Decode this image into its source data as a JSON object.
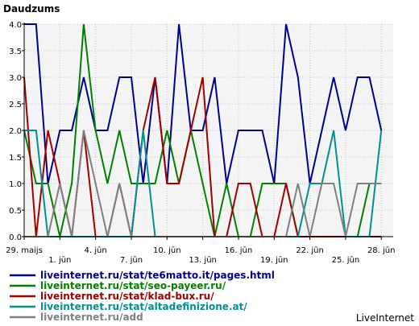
{
  "chart_data": {
    "type": "line",
    "title": "Daudzums",
    "brand": "LiveInternet",
    "ylim": [
      0,
      4
    ],
    "yticks": [
      "0.0",
      "0.5",
      "1.0",
      "1.5",
      "2.0",
      "2.5",
      "3.0",
      "3.5",
      "4.0"
    ],
    "xlim": [
      0,
      31
    ],
    "xticks": [
      {
        "label": "29. maijs",
        "x": 0,
        "row": 1
      },
      {
        "label": "1. jūn",
        "x": 3,
        "row": 2
      },
      {
        "label": "4. jūn",
        "x": 6,
        "row": 1
      },
      {
        "label": "7. jūn",
        "x": 9,
        "row": 2
      },
      {
        "label": "10. jūn",
        "x": 12,
        "row": 1
      },
      {
        "label": "13. jūn",
        "x": 15,
        "row": 2
      },
      {
        "label": "16. jūn",
        "x": 18,
        "row": 1
      },
      {
        "label": "19. jūn",
        "x": 21,
        "row": 2
      },
      {
        "label": "22. jūn",
        "x": 24,
        "row": 1
      },
      {
        "label": "25. jūn",
        "x": 27,
        "row": 2
      },
      {
        "label": "28. jūn",
        "x": 30,
        "row": 1
      }
    ],
    "grid": true,
    "series": [
      {
        "name": "liveinternet.ru/stat/te6matto.it/pages.html",
        "color": "#000090",
        "points": [
          [
            0,
            4
          ],
          [
            1,
            4
          ],
          [
            2,
            1
          ],
          [
            3,
            2
          ],
          [
            4,
            2
          ],
          [
            5,
            3
          ],
          [
            6,
            2
          ],
          [
            7,
            2
          ],
          [
            8,
            3
          ],
          [
            9,
            3
          ],
          [
            10,
            1
          ],
          [
            11,
            3
          ],
          [
            12,
            1
          ],
          [
            13,
            4
          ],
          [
            14,
            2
          ],
          [
            15,
            2
          ],
          [
            16,
            3
          ],
          [
            17,
            1
          ],
          [
            18,
            2
          ],
          [
            19,
            2
          ],
          [
            20,
            2
          ],
          [
            21,
            1
          ],
          [
            22,
            4
          ],
          [
            23,
            3
          ],
          [
            24,
            1
          ],
          [
            25,
            2
          ],
          [
            26,
            3
          ],
          [
            27,
            2
          ],
          [
            28,
            3
          ],
          [
            29,
            3
          ],
          [
            30,
            2
          ]
        ]
      },
      {
        "name": "liveinternet.ru/stat/seo-payeer.ru/",
        "color": "#008000",
        "points": [
          [
            0,
            2
          ],
          [
            1,
            1
          ],
          [
            2,
            1
          ],
          [
            3,
            0
          ],
          [
            4,
            1
          ],
          [
            5,
            4
          ],
          [
            6,
            2
          ],
          [
            7,
            1
          ],
          [
            8,
            2
          ],
          [
            9,
            1
          ],
          [
            10,
            1
          ],
          [
            11,
            1
          ],
          [
            12,
            2
          ],
          [
            13,
            1
          ],
          [
            14,
            2
          ],
          [
            15,
            1
          ],
          [
            16,
            0
          ],
          [
            17,
            1
          ],
          [
            18,
            0
          ],
          [
            19,
            0
          ],
          [
            20,
            1
          ],
          [
            21,
            1
          ],
          [
            22,
            1
          ],
          [
            23,
            0
          ],
          [
            24,
            0
          ],
          [
            25,
            0
          ],
          [
            26,
            0
          ],
          [
            27,
            0
          ],
          [
            28,
            0
          ],
          [
            29,
            1
          ],
          [
            30,
            1
          ]
        ]
      },
      {
        "name": "liveinternet.ru/stat/klad-bux.ru/",
        "color": "#a00000",
        "points": [
          [
            0,
            3
          ],
          [
            1,
            0
          ],
          [
            2,
            2
          ],
          [
            3,
            1
          ],
          [
            4,
            0
          ],
          [
            5,
            2
          ],
          [
            6,
            0
          ],
          [
            7,
            0
          ],
          [
            8,
            1
          ],
          [
            9,
            0
          ],
          [
            10,
            2
          ],
          [
            11,
            3
          ],
          [
            12,
            1
          ],
          [
            13,
            1
          ],
          [
            14,
            2
          ],
          [
            15,
            3
          ],
          [
            16,
            0
          ],
          [
            17,
            0
          ],
          [
            18,
            1
          ],
          [
            19,
            1
          ],
          [
            20,
            0
          ],
          [
            21,
            0
          ],
          [
            22,
            1
          ],
          [
            23,
            0
          ],
          [
            24,
            0
          ],
          [
            25,
            0
          ],
          [
            26,
            0
          ],
          [
            27,
            0
          ],
          [
            28,
            0
          ],
          [
            29,
            0
          ],
          [
            30,
            0
          ]
        ]
      },
      {
        "name": "liveinternet.ru/stat/altadefinizione.at/",
        "color": "#009090",
        "points": [
          [
            0,
            2
          ],
          [
            1,
            2
          ],
          [
            2,
            0
          ],
          [
            3,
            0
          ],
          [
            4,
            0
          ],
          [
            5,
            0
          ],
          [
            6,
            0
          ],
          [
            7,
            0
          ],
          [
            8,
            0
          ],
          [
            9,
            0
          ],
          [
            10,
            2
          ],
          [
            11,
            0
          ],
          [
            12,
            0
          ],
          [
            13,
            0
          ],
          [
            14,
            0
          ],
          [
            15,
            0
          ],
          [
            16,
            0
          ],
          [
            17,
            0
          ],
          [
            18,
            0
          ],
          [
            19,
            0
          ],
          [
            20,
            0
          ],
          [
            21,
            0
          ],
          [
            22,
            0
          ],
          [
            23,
            0
          ],
          [
            24,
            1
          ],
          [
            25,
            1
          ],
          [
            26,
            2
          ],
          [
            27,
            0
          ],
          [
            28,
            0
          ],
          [
            29,
            0
          ],
          [
            30,
            2
          ]
        ]
      },
      {
        "name": "liveinternet.ru/add",
        "color": "#808080",
        "points": [
          [
            0,
            0
          ],
          [
            1,
            0
          ],
          [
            2,
            0
          ],
          [
            3,
            1
          ],
          [
            4,
            0
          ],
          [
            5,
            2
          ],
          [
            6,
            1
          ],
          [
            7,
            0
          ],
          [
            8,
            1
          ],
          [
            9,
            0
          ],
          [
            10,
            0
          ],
          [
            11,
            0
          ],
          [
            12,
            0
          ],
          [
            13,
            0
          ],
          [
            14,
            0
          ],
          [
            15,
            0
          ],
          [
            16,
            0
          ],
          [
            17,
            0
          ],
          [
            18,
            0
          ],
          [
            19,
            0
          ],
          [
            20,
            0
          ],
          [
            21,
            0
          ],
          [
            22,
            0
          ],
          [
            23,
            1
          ],
          [
            24,
            0
          ],
          [
            25,
            1
          ],
          [
            26,
            1
          ],
          [
            27,
            0
          ],
          [
            28,
            1
          ],
          [
            29,
            1
          ],
          [
            30,
            1
          ]
        ]
      }
    ]
  }
}
